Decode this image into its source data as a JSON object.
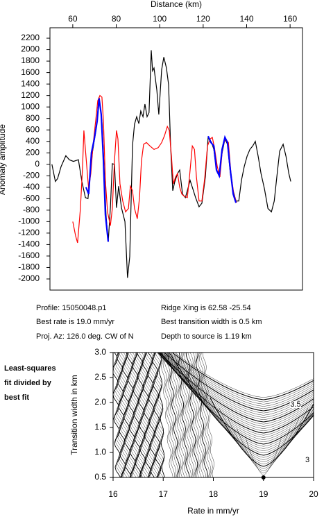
{
  "chart_data": [
    {
      "type": "line",
      "xlabel": "Distance (km)",
      "ylabel": "Anomaly amplitude",
      "xlim": [
        49.5,
        165.7
      ],
      "ylim": [
        -2194,
        2382
      ],
      "xticks": [
        60,
        80,
        100,
        120,
        140,
        160
      ],
      "yticks": [
        -2000,
        -1800,
        -1600,
        -1400,
        -1200,
        -1000,
        -800,
        -600,
        -400,
        -200,
        0,
        200,
        400,
        600,
        800,
        1000,
        1200,
        1400,
        1600,
        1800,
        2000,
        2200
      ],
      "series": [
        {
          "color": "#000000",
          "x": [
            50.4,
            52,
            53,
            54.6,
            56.8,
            58.4,
            60.3,
            62.6,
            64.2,
            65.8,
            67,
            69,
            70.9,
            72.1,
            73.4,
            74.4,
            75.3,
            76.3,
            77.3,
            78.2,
            79.2,
            80.1,
            81.1,
            82.4,
            84,
            85.2,
            86.2,
            87.5,
            88.4,
            89.4,
            90.4,
            91.3,
            92.3,
            93.2,
            94.2,
            95.1,
            96.1,
            96.7,
            97.4,
            98.7,
            99.6,
            100.9,
            101.9,
            103.1,
            104.1,
            105,
            106,
            106.9,
            108.2,
            109.2,
            110.5,
            111.8,
            112.7,
            114,
            115,
            116.5,
            118.1,
            119.4,
            121,
            122.3,
            123.9,
            124.9,
            126.1,
            127.4,
            128.7,
            130,
            131.2,
            132.5,
            133.8,
            135.1,
            136.4,
            137.6,
            138.9,
            140.2,
            141.5,
            142.8,
            144,
            145.3,
            146.6,
            148.2,
            149.8,
            151.4,
            152.7,
            153.9,
            155.2,
            156.8,
            158.1,
            159.4,
            160.3
          ],
          "values": [
            0,
            -300,
            -250,
            -40,
            150,
            80,
            50,
            80,
            -300,
            -580,
            -600,
            200,
            650,
            1170,
            750,
            -40,
            -880,
            -1350,
            -760,
            10,
            0,
            -760,
            -380,
            -760,
            -1000,
            -1980,
            -1610,
            330,
            700,
            830,
            710,
            930,
            830,
            1050,
            830,
            900,
            1990,
            1630,
            1680,
            1290,
            870,
            1650,
            1870,
            1680,
            1390,
            320,
            -460,
            -310,
            -160,
            -100,
            -520,
            -580,
            -460,
            -280,
            -400,
            -580,
            -740,
            -680,
            -220,
            470,
            380,
            260,
            -100,
            -160,
            200,
            440,
            350,
            -160,
            -460,
            -640,
            -640,
            -280,
            -40,
            140,
            260,
            320,
            400,
            140,
            -160,
            -430,
            -770,
            -830,
            -640,
            -220,
            230,
            350,
            140,
            -160,
            -300
          ]
        },
        {
          "color": "#ff0000",
          "x": [
            60,
            61.3,
            62.2,
            63.5,
            64.5,
            65.1,
            65.8,
            66.7,
            67.3,
            68.3,
            69.3,
            70.5,
            71.5,
            72.5,
            73.4,
            74.1,
            75,
            76,
            77.3,
            78.2,
            79.2,
            80.1,
            80.8,
            81.7,
            83,
            84.3,
            85.6,
            86.5,
            87.5,
            88.4,
            89.7,
            90.7,
            91.6,
            92.6,
            93.9,
            95.5,
            97.4,
            99.3,
            100.9,
            102.2,
            103.5,
            104.4,
            105.4,
            106.3,
            107.3,
            108.2,
            109.2,
            110.2,
            111.4,
            112.7,
            113.7,
            115,
            116,
            116.9,
            118.1,
            119.4,
            120.7,
            122,
            123.2,
            124.2,
            125.2,
            126.5,
            127.7,
            129,
            130.3,
            131.6,
            132.8,
            134.1,
            135.4
          ],
          "values": [
            -1000,
            -1250,
            -1370,
            -770,
            -40,
            590,
            260,
            -160,
            -430,
            -160,
            320,
            750,
            1110,
            1200,
            1170,
            750,
            -280,
            -830,
            -1070,
            -770,
            60,
            590,
            440,
            -340,
            -640,
            -830,
            -770,
            -380,
            -460,
            -770,
            -950,
            -580,
            60,
            350,
            380,
            320,
            260,
            290,
            380,
            500,
            660,
            590,
            140,
            -340,
            -220,
            -160,
            -400,
            -520,
            -560,
            -580,
            -220,
            320,
            260,
            -220,
            -640,
            -640,
            -250,
            320,
            440,
            470,
            290,
            -40,
            -220,
            320,
            440,
            380,
            -160,
            -520,
            -670
          ]
        },
        {
          "color": "#0000ff",
          "x": [
            66.1,
            67.3,
            68.6,
            69.9,
            71.2,
            72.1,
            73.1,
            74.1,
            75,
            76.3,
            null,
            122.3,
            123.6,
            124.9,
            126.1,
            127.4,
            128.7,
            130,
            131.2,
            132.5,
            133.8,
            135.1
          ],
          "values": [
            -400,
            -520,
            200,
            440,
            750,
            1150,
            870,
            60,
            -880,
            -1350,
            null,
            490,
            380,
            320,
            -100,
            -200,
            260,
            470,
            380,
            -100,
            -520,
            -670
          ]
        }
      ],
      "info": [
        "Profile: 15050048.p1",
        "Best rate is 19.0 mm/yr",
        "Proj. Az: 126.0 deg. CW of N",
        "Ridge Xing is 62.58 -25.54",
        "Best transition width is 0.5 km",
        "Depth to source is   1.19 km"
      ]
    },
    {
      "type": "contour",
      "xlabel": "Rate in mm/yr",
      "ylabel": "Transition width in km",
      "xlim": [
        16,
        20
      ],
      "ylim": [
        0.5,
        3.0
      ],
      "xticks": [
        16,
        17,
        18,
        19,
        20
      ],
      "yticks": [
        {
          "value": 0.5,
          "label": "0.5"
        },
        {
          "value": 1,
          "label": "1.0"
        },
        {
          "value": 1.5,
          "label": "1.5"
        },
        {
          "value": 2,
          "label": "2.0"
        },
        {
          "value": 2.5,
          "label": "2.5"
        },
        {
          "value": 3,
          "label": "3.0"
        }
      ],
      "x": [
        19
      ],
      "values": [
        0.5
      ],
      "annotations": [
        "3.5",
        "3"
      ],
      "caption_lines": [
        "Least-squares",
        "fit divided by",
        "best fit"
      ]
    }
  ]
}
